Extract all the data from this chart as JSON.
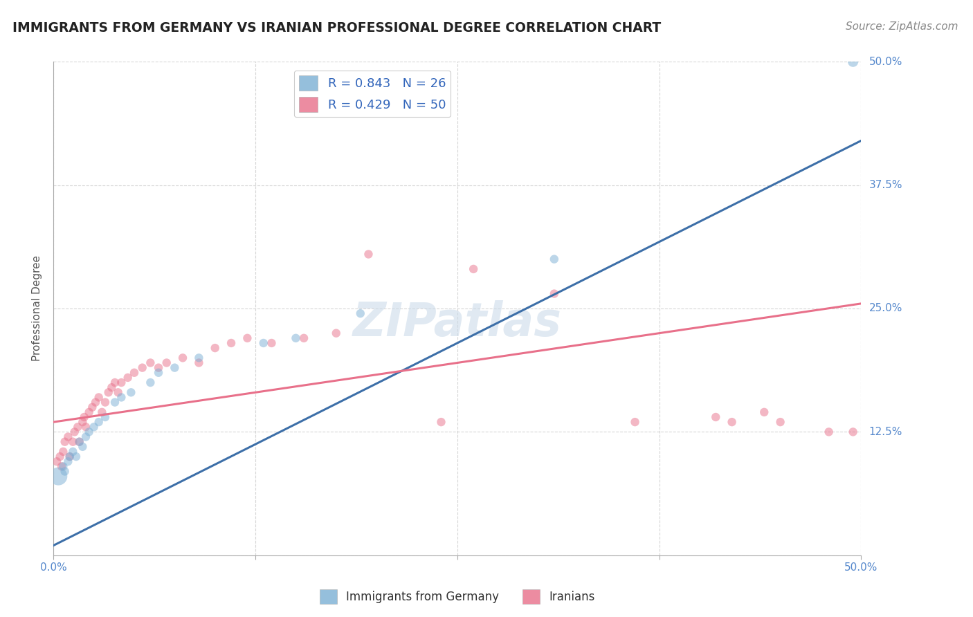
{
  "title": "IMMIGRANTS FROM GERMANY VS IRANIAN PROFESSIONAL DEGREE CORRELATION CHART",
  "source": "Source: ZipAtlas.com",
  "ylabel": "Professional Degree",
  "xlim": [
    0.0,
    0.5
  ],
  "ylim": [
    0.0,
    0.5
  ],
  "xticks": [
    0.0,
    0.125,
    0.25,
    0.375,
    0.5
  ],
  "yticks": [
    0.0,
    0.125,
    0.25,
    0.375,
    0.5
  ],
  "xtick_labels": [
    "0.0%",
    "",
    "",
    "",
    "50.0%"
  ],
  "ytick_labels_right": [
    "",
    "12.5%",
    "25.0%",
    "37.5%",
    "50.0%"
  ],
  "grid_color": "#cccccc",
  "background_color": "#ffffff",
  "blue_color": "#7bafd4",
  "pink_color": "#e8708a",
  "legend1_R": "0.843",
  "legend1_N": "26",
  "legend2_R": "0.429",
  "legend2_N": "50",
  "blue_line_x": [
    0.0,
    0.5
  ],
  "blue_line_y": [
    0.01,
    0.42
  ],
  "pink_line_x": [
    0.0,
    0.5
  ],
  "pink_line_y": [
    0.135,
    0.255
  ],
  "blue_points": [
    [
      0.003,
      0.08
    ],
    [
      0.006,
      0.09
    ],
    [
      0.007,
      0.085
    ],
    [
      0.009,
      0.095
    ],
    [
      0.01,
      0.1
    ],
    [
      0.012,
      0.105
    ],
    [
      0.014,
      0.1
    ],
    [
      0.016,
      0.115
    ],
    [
      0.018,
      0.11
    ],
    [
      0.02,
      0.12
    ],
    [
      0.022,
      0.125
    ],
    [
      0.025,
      0.13
    ],
    [
      0.028,
      0.135
    ],
    [
      0.032,
      0.14
    ],
    [
      0.038,
      0.155
    ],
    [
      0.042,
      0.16
    ],
    [
      0.048,
      0.165
    ],
    [
      0.06,
      0.175
    ],
    [
      0.065,
      0.185
    ],
    [
      0.075,
      0.19
    ],
    [
      0.09,
      0.2
    ],
    [
      0.13,
      0.215
    ],
    [
      0.15,
      0.22
    ],
    [
      0.19,
      0.245
    ],
    [
      0.31,
      0.3
    ],
    [
      0.495,
      0.5
    ]
  ],
  "pink_points": [
    [
      0.002,
      0.095
    ],
    [
      0.004,
      0.1
    ],
    [
      0.005,
      0.09
    ],
    [
      0.006,
      0.105
    ],
    [
      0.007,
      0.115
    ],
    [
      0.009,
      0.12
    ],
    [
      0.01,
      0.1
    ],
    [
      0.012,
      0.115
    ],
    [
      0.013,
      0.125
    ],
    [
      0.015,
      0.13
    ],
    [
      0.016,
      0.115
    ],
    [
      0.018,
      0.135
    ],
    [
      0.019,
      0.14
    ],
    [
      0.02,
      0.13
    ],
    [
      0.022,
      0.145
    ],
    [
      0.024,
      0.15
    ],
    [
      0.026,
      0.155
    ],
    [
      0.028,
      0.16
    ],
    [
      0.03,
      0.145
    ],
    [
      0.032,
      0.155
    ],
    [
      0.034,
      0.165
    ],
    [
      0.036,
      0.17
    ],
    [
      0.038,
      0.175
    ],
    [
      0.04,
      0.165
    ],
    [
      0.042,
      0.175
    ],
    [
      0.046,
      0.18
    ],
    [
      0.05,
      0.185
    ],
    [
      0.055,
      0.19
    ],
    [
      0.06,
      0.195
    ],
    [
      0.065,
      0.19
    ],
    [
      0.07,
      0.195
    ],
    [
      0.08,
      0.2
    ],
    [
      0.09,
      0.195
    ],
    [
      0.1,
      0.21
    ],
    [
      0.11,
      0.215
    ],
    [
      0.12,
      0.22
    ],
    [
      0.135,
      0.215
    ],
    [
      0.155,
      0.22
    ],
    [
      0.175,
      0.225
    ],
    [
      0.195,
      0.305
    ],
    [
      0.24,
      0.135
    ],
    [
      0.26,
      0.29
    ],
    [
      0.31,
      0.265
    ],
    [
      0.36,
      0.135
    ],
    [
      0.41,
      0.14
    ],
    [
      0.42,
      0.135
    ],
    [
      0.44,
      0.145
    ],
    [
      0.45,
      0.135
    ],
    [
      0.48,
      0.125
    ],
    [
      0.495,
      0.125
    ]
  ],
  "blue_point_sizes": [
    350,
    80,
    80,
    80,
    80,
    80,
    80,
    80,
    80,
    80,
    80,
    80,
    80,
    80,
    80,
    80,
    80,
    80,
    80,
    80,
    80,
    80,
    80,
    80,
    80,
    120
  ],
  "pink_point_sizes": [
    80,
    80,
    80,
    80,
    80,
    80,
    80,
    80,
    80,
    80,
    80,
    80,
    80,
    80,
    80,
    80,
    80,
    80,
    80,
    80,
    80,
    80,
    80,
    80,
    80,
    80,
    80,
    80,
    80,
    80,
    80,
    80,
    80,
    80,
    80,
    80,
    80,
    80,
    80,
    80,
    80,
    80,
    80,
    80,
    80,
    80,
    80,
    80,
    80,
    80
  ]
}
